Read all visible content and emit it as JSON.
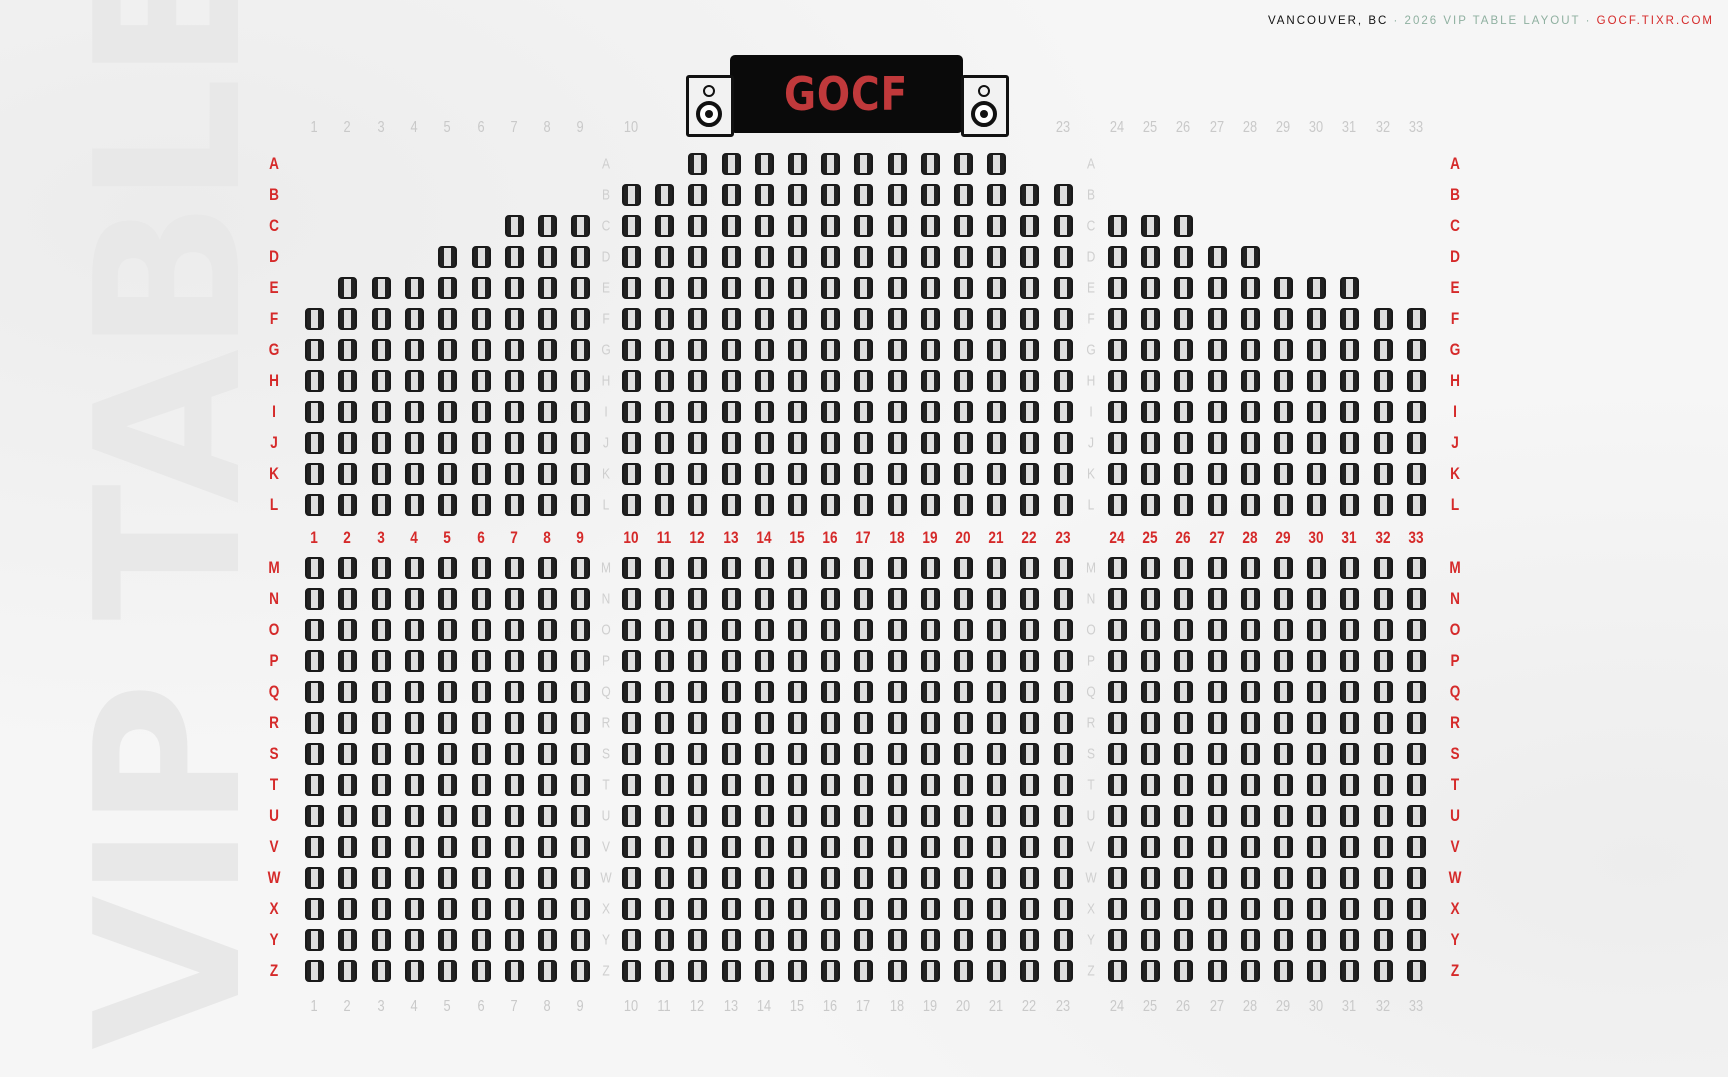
{
  "header": {
    "city": "VANCOUVER, BC",
    "separator": "·",
    "title": "2026 VIP TABLE LAYOUT",
    "url": "GOCF.TIXR.COM"
  },
  "watermark": "VIP TABLES",
  "stage": {
    "logo": "GOCF"
  },
  "colors": {
    "accent": "#d52a2a",
    "muted": "#8fb0a0",
    "stage": "#0a0a0a",
    "logo": "#c0393b"
  },
  "icons": {
    "speaker": "speaker-icon",
    "seat": "table-seat-icon"
  },
  "top_numbers": [
    1,
    2,
    3,
    4,
    5,
    6,
    7,
    8,
    9,
    10,
    23,
    24,
    25,
    26,
    27,
    28,
    29,
    30,
    31,
    32,
    33
  ],
  "middle_numbers": [
    1,
    2,
    3,
    4,
    5,
    6,
    7,
    8,
    9,
    10,
    11,
    12,
    13,
    14,
    15,
    16,
    17,
    18,
    19,
    20,
    21,
    22,
    23,
    24,
    25,
    26,
    27,
    28,
    29,
    30,
    31,
    32,
    33
  ],
  "bottom_numbers": [
    1,
    2,
    3,
    4,
    5,
    6,
    7,
    8,
    9,
    10,
    11,
    12,
    13,
    14,
    15,
    16,
    17,
    18,
    19,
    20,
    21,
    22,
    23,
    24,
    25,
    26,
    27,
    28,
    29,
    30,
    31,
    32,
    33
  ],
  "rows": [
    {
      "label": "A",
      "seats": [
        [
          12,
          21
        ]
      ]
    },
    {
      "label": "B",
      "seats": [
        [
          10,
          23
        ]
      ]
    },
    {
      "label": "C",
      "seats": [
        [
          7,
          9
        ],
        [
          10,
          23
        ],
        [
          24,
          26
        ]
      ]
    },
    {
      "label": "D",
      "seats": [
        [
          5,
          9
        ],
        [
          10,
          23
        ],
        [
          24,
          28
        ]
      ]
    },
    {
      "label": "E",
      "seats": [
        [
          2,
          9
        ],
        [
          10,
          23
        ],
        [
          24,
          31
        ]
      ]
    },
    {
      "label": "F",
      "seats": [
        [
          1,
          33
        ]
      ]
    },
    {
      "label": "G",
      "seats": [
        [
          1,
          33
        ]
      ]
    },
    {
      "label": "H",
      "seats": [
        [
          1,
          33
        ]
      ]
    },
    {
      "label": "I",
      "seats": [
        [
          1,
          33
        ]
      ]
    },
    {
      "label": "J",
      "seats": [
        [
          1,
          33
        ]
      ]
    },
    {
      "label": "K",
      "seats": [
        [
          1,
          33
        ]
      ]
    },
    {
      "label": "L",
      "seats": [
        [
          1,
          33
        ]
      ]
    },
    {
      "label": "M",
      "seats": [
        [
          1,
          33
        ]
      ]
    },
    {
      "label": "N",
      "seats": [
        [
          1,
          33
        ]
      ]
    },
    {
      "label": "O",
      "seats": [
        [
          1,
          33
        ]
      ]
    },
    {
      "label": "P",
      "seats": [
        [
          1,
          33
        ]
      ]
    },
    {
      "label": "Q",
      "seats": [
        [
          1,
          33
        ]
      ]
    },
    {
      "label": "R",
      "seats": [
        [
          1,
          33
        ]
      ]
    },
    {
      "label": "S",
      "seats": [
        [
          1,
          33
        ]
      ]
    },
    {
      "label": "T",
      "seats": [
        [
          1,
          33
        ]
      ]
    },
    {
      "label": "U",
      "seats": [
        [
          1,
          33
        ]
      ]
    },
    {
      "label": "V",
      "seats": [
        [
          1,
          33
        ]
      ]
    },
    {
      "label": "W",
      "seats": [
        [
          1,
          33
        ]
      ]
    },
    {
      "label": "X",
      "seats": [
        [
          1,
          33
        ]
      ]
    },
    {
      "label": "Y",
      "seats": [
        [
          1,
          33
        ]
      ]
    },
    {
      "label": "Z",
      "seats": [
        [
          1,
          33
        ]
      ]
    }
  ]
}
